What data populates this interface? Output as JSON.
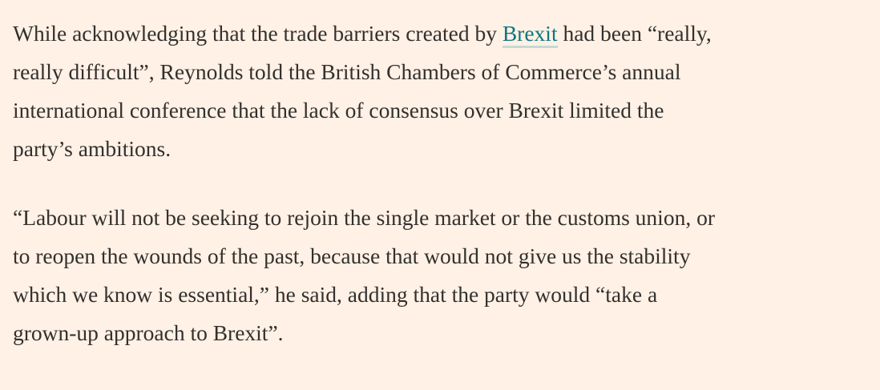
{
  "article": {
    "paragraphs": [
      {
        "lines": [
          [
            {
              "text": "While acknowledging that the trade barriers created by "
            },
            {
              "text": "Brexit",
              "link": true
            },
            {
              "text": " had been “really,"
            }
          ],
          [
            {
              "text": "really difficult”, Reynolds told the British Chambers of Commerce’s annual"
            }
          ],
          [
            {
              "text": "international conference that the lack of consensus over Brexit limited the"
            }
          ],
          [
            {
              "text": "party’s ambitions."
            }
          ]
        ]
      },
      {
        "lines": [
          [
            {
              "text": "“Labour will not be seeking to rejoin the single market or the customs union, or"
            }
          ],
          [
            {
              "text": "to reopen the wounds of the past, because that would not give us the stability"
            }
          ],
          [
            {
              "text": "which we know is essential,” he said, adding that the party would “take a"
            }
          ],
          [
            {
              "text": "grown-up approach to Brexit”."
            }
          ]
        ]
      }
    ]
  }
}
